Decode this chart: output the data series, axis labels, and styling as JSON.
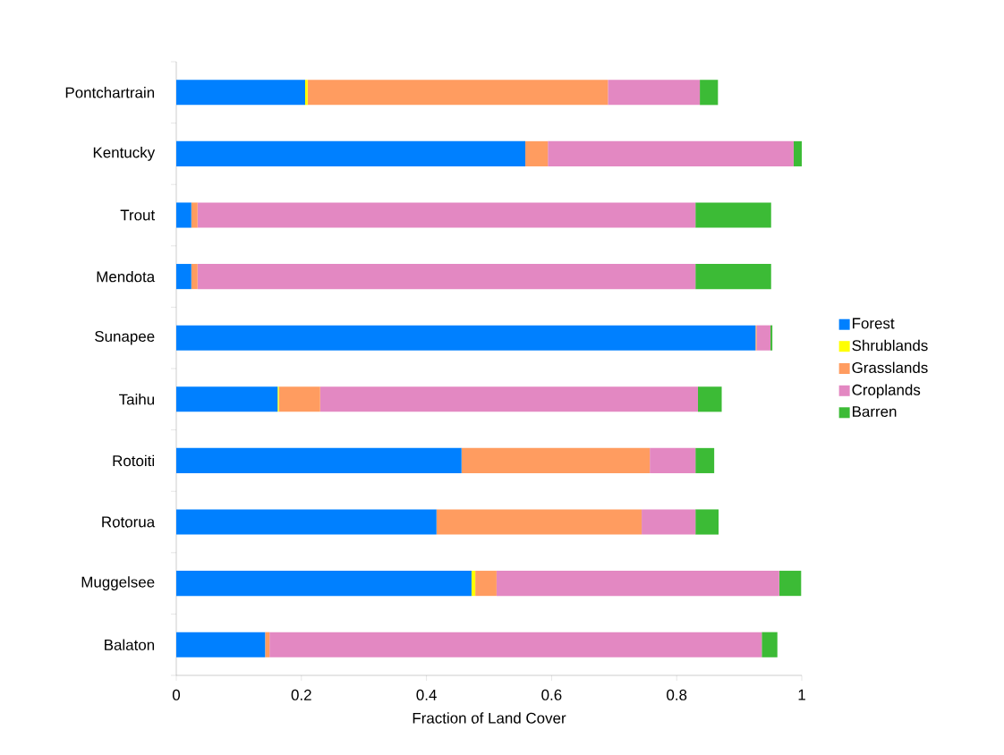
{
  "chart_data": {
    "type": "bar",
    "orientation": "horizontal",
    "stacked": true,
    "xlabel": "Fraction of Land Cover",
    "categories": [
      "Pontchartrain",
      "Kentucky",
      "Trout",
      "Mendota",
      "Sunapee",
      "Taihu",
      "Rotoiti",
      "Rotorua",
      "Muggelsee",
      "Balaton"
    ],
    "series": [
      {
        "name": "Forest",
        "color": "#0080ff",
        "values": [
          0.206,
          0.558,
          0.024,
          0.024,
          0.926,
          0.162,
          0.456,
          0.416,
          0.472,
          0.142
        ]
      },
      {
        "name": "Shrublands",
        "color": "#ffff00",
        "values": [
          0.004,
          0,
          0,
          0,
          0,
          0.002,
          0,
          0,
          0.006,
          0
        ]
      },
      {
        "name": "Grasslands",
        "color": "#ff9c60",
        "values": [
          0.48,
          0.036,
          0.01,
          0.01,
          0.002,
          0.066,
          0.301,
          0.328,
          0.034,
          0.007
        ]
      },
      {
        "name": "Croplands",
        "color": "#e388c2",
        "values": [
          0.147,
          0.393,
          0.796,
          0.796,
          0.022,
          0.604,
          0.073,
          0.086,
          0.452,
          0.787
        ]
      },
      {
        "name": "Barren",
        "color": "#3cbb36",
        "values": [
          0.029,
          0.013,
          0.121,
          0.121,
          0.003,
          0.038,
          0.03,
          0.037,
          0.035,
          0.025
        ]
      }
    ],
    "xlim": [
      0,
      1
    ],
    "xticks": [
      0,
      0.2,
      0.4,
      0.6,
      0.8,
      1
    ],
    "legend": "right",
    "grid": false
  }
}
